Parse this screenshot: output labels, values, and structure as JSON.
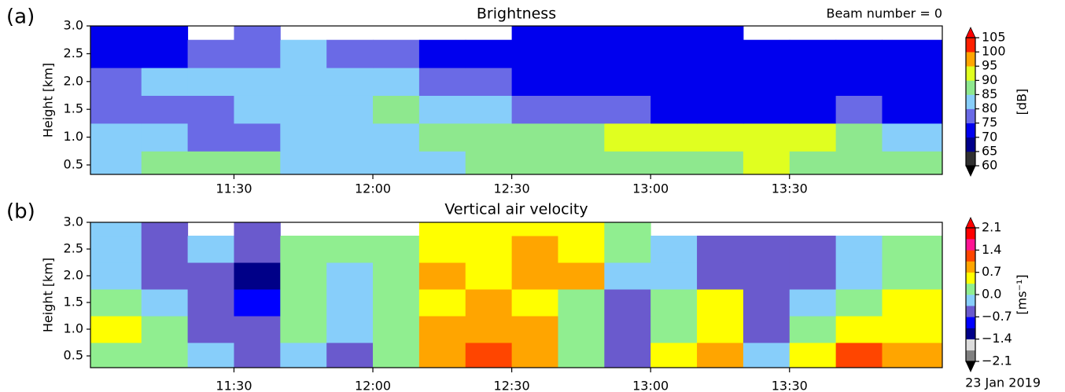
{
  "chart_data": [
    {
      "type": "contour",
      "panel_label": "(a)",
      "title": "Brightness",
      "annotation": "Beam number = 0",
      "ylabel": "Height [km]",
      "colorbar_label": "[dB]",
      "xlim": [
        659,
        843
      ],
      "ylim": [
        0.33,
        3.0
      ],
      "xticks": [
        {
          "value": 690,
          "label": "11:30"
        },
        {
          "value": 720,
          "label": "12:00"
        },
        {
          "value": 750,
          "label": "12:30"
        },
        {
          "value": 780,
          "label": "13:00"
        },
        {
          "value": 810,
          "label": "13:30"
        }
      ],
      "yticks": [
        0.5,
        {
          "value": 1,
          "label": "1.0"
        },
        1.5,
        {
          "value": 2,
          "label": "2.0"
        },
        2.5,
        {
          "value": 3,
          "label": "3.0"
        }
      ],
      "x_edges": [
        659,
        670,
        680,
        690,
        700,
        710,
        720,
        730,
        740,
        750,
        760,
        770,
        780,
        790,
        800,
        810,
        820,
        830,
        843
      ],
      "y_edges": [
        0.33,
        0.75,
        1.25,
        1.75,
        2.25,
        2.75,
        3.0
      ],
      "z": [
        [
          84,
          85,
          86,
          85,
          84,
          83,
          80,
          82,
          85,
          86,
          87,
          88,
          88,
          89,
          90,
          88,
          87,
          86
        ],
        [
          80,
          80,
          78,
          78,
          80,
          80,
          82,
          85,
          85,
          86,
          88,
          90,
          92,
          90,
          92,
          90,
          88,
          82
        ],
        [
          76,
          75,
          78,
          80,
          82,
          84,
          85,
          84,
          82,
          78,
          76,
          75,
          74,
          74,
          73,
          74,
          75,
          74
        ],
        [
          78,
          80,
          82,
          84,
          84,
          83,
          80,
          78,
          75,
          74,
          72,
          73,
          72,
          72,
          73,
          72,
          73,
          74
        ],
        [
          72,
          73,
          75,
          78,
          82,
          78,
          75,
          73,
          72,
          70,
          70,
          71,
          70,
          70,
          71,
          70,
          71,
          72
        ],
        [
          72,
          70,
          null,
          75,
          null,
          null,
          null,
          null,
          null,
          71,
          72,
          70,
          70,
          71,
          null,
          null,
          null,
          null
        ]
      ],
      "levels": [
        60,
        65,
        70,
        75,
        80,
        85,
        90,
        95,
        100,
        105
      ],
      "colors": [
        "#303030",
        "#00008b",
        "#0000ee",
        "#6a6ae6",
        "#87cefa",
        "#8ee88e",
        "#e0ff20",
        "#ffa500",
        "#ff2000"
      ],
      "under_color": "#000000",
      "over_color": "#ff0000",
      "cticks": [
        60,
        65,
        70,
        75,
        80,
        85,
        90,
        95,
        100,
        105
      ]
    },
    {
      "type": "contour",
      "panel_label": "(b)",
      "title": "Vertical air velocity",
      "annotation": "23 Jan 2019",
      "ylabel": "Height [km]",
      "colorbar_label": "[ms⁻¹]",
      "xlim": [
        659,
        843
      ],
      "ylim": [
        0.28,
        3.0
      ],
      "xticks": [
        {
          "value": 690,
          "label": "11:30"
        },
        {
          "value": 720,
          "label": "12:00"
        },
        {
          "value": 750,
          "label": "12:30"
        },
        {
          "value": 780,
          "label": "13:00"
        },
        {
          "value": 810,
          "label": "13:30"
        }
      ],
      "yticks": [
        0.5,
        {
          "value": 1,
          "label": "1.0"
        },
        1.5,
        {
          "value": 2,
          "label": "2.0"
        },
        2.5,
        {
          "value": 3,
          "label": "3.0"
        }
      ],
      "x_edges": [
        659,
        670,
        680,
        690,
        700,
        710,
        720,
        730,
        740,
        750,
        760,
        770,
        780,
        790,
        800,
        810,
        820,
        830,
        843
      ],
      "y_edges": [
        0.28,
        0.75,
        1.25,
        1.75,
        2.25,
        2.75,
        3.0
      ],
      "z": [
        [
          0.3,
          0.2,
          -0.3,
          -0.5,
          -0.3,
          -0.6,
          0.2,
          0.9,
          1.2,
          0.8,
          0.3,
          -0.5,
          0.4,
          1.0,
          -0.3,
          0.5,
          1.1,
          0.8
        ],
        [
          0.4,
          0.0,
          -0.4,
          -0.6,
          0.0,
          -0.3,
          0.3,
          0.8,
          0.9,
          0.7,
          0.2,
          -0.6,
          0.2,
          0.5,
          -0.4,
          0.3,
          0.6,
          0.5
        ],
        [
          0.0,
          -0.2,
          -0.5,
          -0.8,
          0.2,
          -0.3,
          0.1,
          0.6,
          0.9,
          0.5,
          0.3,
          -0.5,
          0.0,
          0.4,
          -0.4,
          -0.2,
          0.3,
          0.4
        ],
        [
          -0.3,
          -0.4,
          -0.5,
          -1.2,
          0.0,
          -0.2,
          0.2,
          0.8,
          0.6,
          0.8,
          0.9,
          -0.2,
          -0.3,
          -0.4,
          -0.6,
          -0.4,
          -0.2,
          0.0
        ],
        [
          -0.2,
          -0.4,
          -0.3,
          -0.6,
          0.2,
          0.0,
          0.3,
          0.5,
          0.4,
          0.8,
          0.6,
          0.0,
          -0.3,
          -0.5,
          -0.6,
          -0.4,
          -0.3,
          0.0
        ],
        [
          -0.3,
          -0.4,
          null,
          -0.5,
          null,
          null,
          null,
          0.4,
          0.5,
          0.5,
          0.5,
          0.3,
          null,
          null,
          null,
          null,
          null,
          null
        ]
      ],
      "levels": [
        -2.1,
        -1.75,
        -1.4,
        -1.05,
        -0.7,
        -0.35,
        0,
        0.35,
        0.7,
        1.05,
        1.4,
        1.75,
        2.1
      ],
      "colors": [
        "#808080",
        "#dcdcdc",
        "#000088",
        "#0000ff",
        "#6a5acd",
        "#87cefa",
        "#90ee90",
        "#ffff00",
        "#ffa500",
        "#ff4500",
        "#ff1493",
        "#ff0000"
      ],
      "under_color": "#000000",
      "over_color": "#ff0000",
      "cticks": [
        {
          "value": -2.1,
          "label": "−2.1"
        },
        {
          "value": -1.4,
          "label": "−1.4"
        },
        {
          "value": -0.7,
          "label": "−0.7"
        },
        {
          "value": 0,
          "label": "0.0"
        },
        0.7,
        1.4,
        2.1
      ]
    }
  ]
}
